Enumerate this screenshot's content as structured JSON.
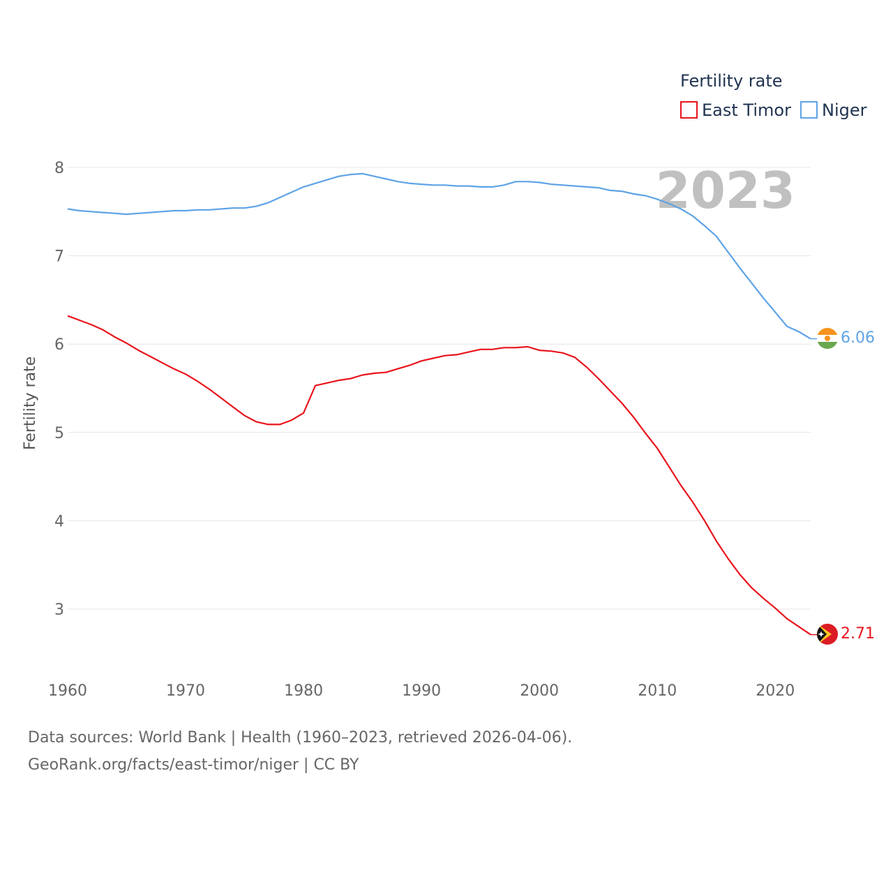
{
  "chart_data": {
    "type": "line",
    "title": "",
    "xlabel": "",
    "ylabel": "Fertility rate",
    "xlim": [
      1960,
      2023
    ],
    "ylim": [
      2.5,
      8.2
    ],
    "x_ticks": [
      1960,
      1970,
      1980,
      1990,
      2000,
      2010,
      2020
    ],
    "y_ticks": [
      3,
      4,
      5,
      6,
      7,
      8
    ],
    "grid": true,
    "current_year": "2023",
    "legend": {
      "title": "Fertility rate",
      "position": "top-right"
    },
    "x": [
      1960,
      1961,
      1962,
      1963,
      1964,
      1965,
      1966,
      1967,
      1968,
      1969,
      1970,
      1971,
      1972,
      1973,
      1974,
      1975,
      1976,
      1977,
      1978,
      1979,
      1980,
      1981,
      1982,
      1983,
      1984,
      1985,
      1986,
      1987,
      1988,
      1989,
      1990,
      1991,
      1992,
      1993,
      1994,
      1995,
      1996,
      1997,
      1998,
      1999,
      2000,
      2001,
      2002,
      2003,
      2004,
      2005,
      2006,
      2007,
      2008,
      2009,
      2010,
      2011,
      2012,
      2013,
      2014,
      2015,
      2016,
      2017,
      2018,
      2019,
      2020,
      2021,
      2022,
      2023
    ],
    "series": [
      {
        "name": "East Timor",
        "color": "#e8141c",
        "flag": "east-timor-flag-icon",
        "end_value": "2.71",
        "values": [
          6.32,
          6.27,
          6.22,
          6.16,
          6.08,
          6.01,
          5.93,
          5.86,
          5.79,
          5.72,
          5.66,
          5.58,
          5.49,
          5.39,
          5.29,
          5.19,
          5.12,
          5.09,
          5.09,
          5.14,
          5.22,
          5.53,
          5.56,
          5.59,
          5.61,
          5.65,
          5.67,
          5.68,
          5.72,
          5.76,
          5.81,
          5.84,
          5.87,
          5.88,
          5.91,
          5.94,
          5.94,
          5.96,
          5.96,
          5.97,
          5.93,
          5.92,
          5.9,
          5.85,
          5.74,
          5.61,
          5.47,
          5.33,
          5.17,
          4.99,
          4.82,
          4.61,
          4.4,
          4.21,
          4.0,
          3.77,
          3.57,
          3.39,
          3.24,
          3.12,
          3.01,
          2.89,
          2.8,
          2.71
        ]
      },
      {
        "name": "Niger",
        "color": "#5ea3e6",
        "flag": "niger-flag-icon",
        "end_value": "6.06",
        "values": [
          7.53,
          7.51,
          7.5,
          7.49,
          7.48,
          7.47,
          7.48,
          7.49,
          7.5,
          7.51,
          7.51,
          7.52,
          7.52,
          7.53,
          7.54,
          7.54,
          7.56,
          7.6,
          7.66,
          7.72,
          7.78,
          7.82,
          7.86,
          7.9,
          7.92,
          7.93,
          7.9,
          7.87,
          7.84,
          7.82,
          7.81,
          7.8,
          7.8,
          7.79,
          7.79,
          7.78,
          7.78,
          7.8,
          7.84,
          7.84,
          7.83,
          7.81,
          7.8,
          7.79,
          7.78,
          7.77,
          7.74,
          7.73,
          7.7,
          7.68,
          7.64,
          7.59,
          7.53,
          7.45,
          7.34,
          7.22,
          7.04,
          6.86,
          6.69,
          6.52,
          6.36,
          6.2,
          6.14,
          6.06
        ]
      }
    ]
  },
  "source": {
    "line1": "Data sources: World Bank | Health (1960–2023, retrieved 2026-04-06).",
    "line2": "GeoRank.org/facts/east-timor/niger | CC BY"
  }
}
